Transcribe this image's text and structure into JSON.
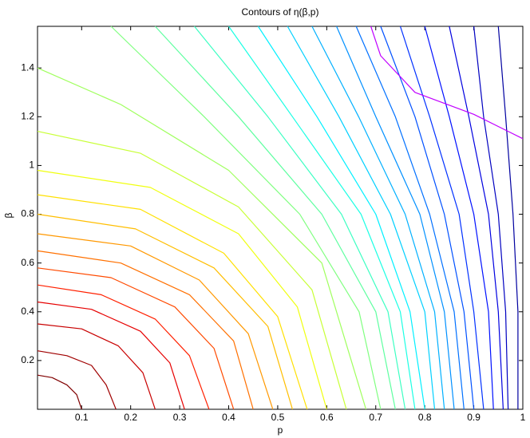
{
  "chart_data": {
    "type": "contour",
    "title": "Contours of η(β,p)",
    "x_label": "p",
    "y_label": "β",
    "xlim": [
      0.01,
      1
    ],
    "ylim": [
      0,
      1.5708
    ],
    "xticks": [
      0.1,
      0.2,
      0.3,
      0.4,
      0.5,
      0.6,
      0.7,
      0.8,
      0.9,
      1
    ],
    "yticks": [
      0.2,
      0.4,
      0.6,
      0.8,
      1,
      1.2,
      1.4
    ],
    "series": [
      {
        "color": "#800000",
        "x": [
          0.01,
          0.04,
          0.07,
          0.09,
          0.1
        ],
        "y": [
          0.14,
          0.13,
          0.1,
          0.06,
          0
        ]
      },
      {
        "color": "#a00000",
        "x": [
          0.01,
          0.07,
          0.12,
          0.15,
          0.17
        ],
        "y": [
          0.24,
          0.22,
          0.18,
          0.1,
          0
        ]
      },
      {
        "color": "#c80000",
        "x": [
          0.01,
          0.1,
          0.175,
          0.225,
          0.25
        ],
        "y": [
          0.35,
          0.33,
          0.26,
          0.15,
          0
        ]
      },
      {
        "color": "#e60000",
        "x": [
          0.01,
          0.12,
          0.22,
          0.28,
          0.31
        ],
        "y": [
          0.44,
          0.41,
          0.32,
          0.19,
          0
        ]
      },
      {
        "color": "#ff2000",
        "x": [
          0.01,
          0.14,
          0.25,
          0.32,
          0.36
        ],
        "y": [
          0.51,
          0.47,
          0.37,
          0.22,
          0
        ]
      },
      {
        "color": "#ff4a00",
        "x": [
          0.01,
          0.16,
          0.29,
          0.37,
          0.41
        ],
        "y": [
          0.58,
          0.54,
          0.42,
          0.25,
          0
        ]
      },
      {
        "color": "#ff7000",
        "x": [
          0.01,
          0.18,
          0.32,
          0.41,
          0.45
        ],
        "y": [
          0.65,
          0.6,
          0.47,
          0.28,
          0
        ]
      },
      {
        "color": "#ff9800",
        "x": [
          0.01,
          0.2,
          0.34,
          0.44,
          0.49
        ],
        "y": [
          0.72,
          0.67,
          0.53,
          0.31,
          0
        ]
      },
      {
        "color": "#ffbe00",
        "x": [
          0.01,
          0.21,
          0.37,
          0.48,
          0.53
        ],
        "y": [
          0.8,
          0.74,
          0.58,
          0.34,
          0
        ]
      },
      {
        "color": "#ffe000",
        "x": [
          0.01,
          0.22,
          0.39,
          0.5,
          0.56
        ],
        "y": [
          0.88,
          0.82,
          0.64,
          0.38,
          0
        ]
      },
      {
        "color": "#f0ff10",
        "x": [
          0.01,
          0.24,
          0.42,
          0.54,
          0.6
        ],
        "y": [
          0.98,
          0.91,
          0.72,
          0.42,
          0
        ]
      },
      {
        "color": "#c8ff36",
        "x": [
          0.01,
          0.22,
          0.42,
          0.57,
          0.64
        ],
        "y": [
          1.14,
          1.05,
          0.83,
          0.49,
          0
        ]
      },
      {
        "color": "#a0ff5e",
        "x": [
          0.01,
          0.18,
          0.4,
          0.59,
          0.68
        ],
        "y": [
          1.4,
          1.25,
          0.98,
          0.6,
          0
        ]
      },
      {
        "color": "#80ff80",
        "x": [
          0.16,
          0.35,
          0.545,
          0.666,
          0.71
        ],
        "y": [
          1.5708,
          1.2,
          0.8,
          0.4,
          0
        ]
      },
      {
        "color": "#5effa0",
        "x": [
          0.25,
          0.42,
          0.59,
          0.7,
          0.74
        ],
        "y": [
          1.5708,
          1.2,
          0.8,
          0.4,
          0
        ]
      },
      {
        "color": "#3cffc2",
        "x": [
          0.33,
          0.48,
          0.63,
          0.725,
          0.76
        ],
        "y": [
          1.5708,
          1.2,
          0.8,
          0.4,
          0
        ]
      },
      {
        "color": "#1affe4",
        "x": [
          0.4,
          0.53,
          0.67,
          0.75,
          0.78
        ],
        "y": [
          1.5708,
          1.2,
          0.8,
          0.4,
          0
        ]
      },
      {
        "color": "#00f0ff",
        "x": [
          0.46,
          0.58,
          0.7,
          0.77,
          0.8
        ],
        "y": [
          1.5708,
          1.2,
          0.8,
          0.4,
          0
        ]
      },
      {
        "color": "#00d0ff",
        "x": [
          0.52,
          0.625,
          0.73,
          0.8,
          0.82
        ],
        "y": [
          1.5708,
          1.2,
          0.8,
          0.4,
          0
        ]
      },
      {
        "color": "#00b0ff",
        "x": [
          0.57,
          0.665,
          0.76,
          0.82,
          0.84
        ],
        "y": [
          1.5708,
          1.2,
          0.8,
          0.4,
          0
        ]
      },
      {
        "color": "#0090ff",
        "x": [
          0.62,
          0.7,
          0.79,
          0.84,
          0.86
        ],
        "y": [
          1.5708,
          1.2,
          0.8,
          0.4,
          0
        ]
      },
      {
        "color": "#0070ff",
        "x": [
          0.66,
          0.74,
          0.81,
          0.86,
          0.88
        ],
        "y": [
          1.5708,
          1.2,
          0.8,
          0.4,
          0
        ]
      },
      {
        "color": "#0050ff",
        "x": [
          0.71,
          0.78,
          0.84,
          0.88,
          0.9
        ],
        "y": [
          1.5708,
          1.2,
          0.8,
          0.4,
          0
        ]
      },
      {
        "color": "#0030ff",
        "x": [
          0.75,
          0.81,
          0.87,
          0.9,
          0.92
        ],
        "y": [
          1.5708,
          1.2,
          0.8,
          0.4,
          0
        ]
      },
      {
        "color": "#0010ff",
        "x": [
          0.8,
          0.85,
          0.9,
          0.93,
          0.94
        ],
        "y": [
          1.5708,
          1.2,
          0.8,
          0.4,
          0
        ]
      },
      {
        "color": "#0000e0",
        "x": [
          0.85,
          0.89,
          0.93,
          0.95,
          0.96
        ],
        "y": [
          1.5708,
          1.2,
          0.8,
          0.4,
          0
        ]
      },
      {
        "color": "#0000c0",
        "x": [
          0.9,
          0.92,
          0.95,
          0.965,
          0.97
        ],
        "y": [
          1.5708,
          1.2,
          0.8,
          0.4,
          0
        ]
      },
      {
        "color": "#0000a0",
        "x": [
          0.95,
          0.965,
          0.98,
          0.99,
          0.99
        ],
        "y": [
          1.5708,
          1.2,
          0.8,
          0.4,
          0
        ]
      },
      {
        "color": "#c000ff",
        "x": [
          0.69,
          0.71,
          0.78,
          0.9,
          1.0
        ],
        "y": [
          1.5708,
          1.45,
          1.3,
          1.21,
          1.11
        ]
      }
    ]
  }
}
